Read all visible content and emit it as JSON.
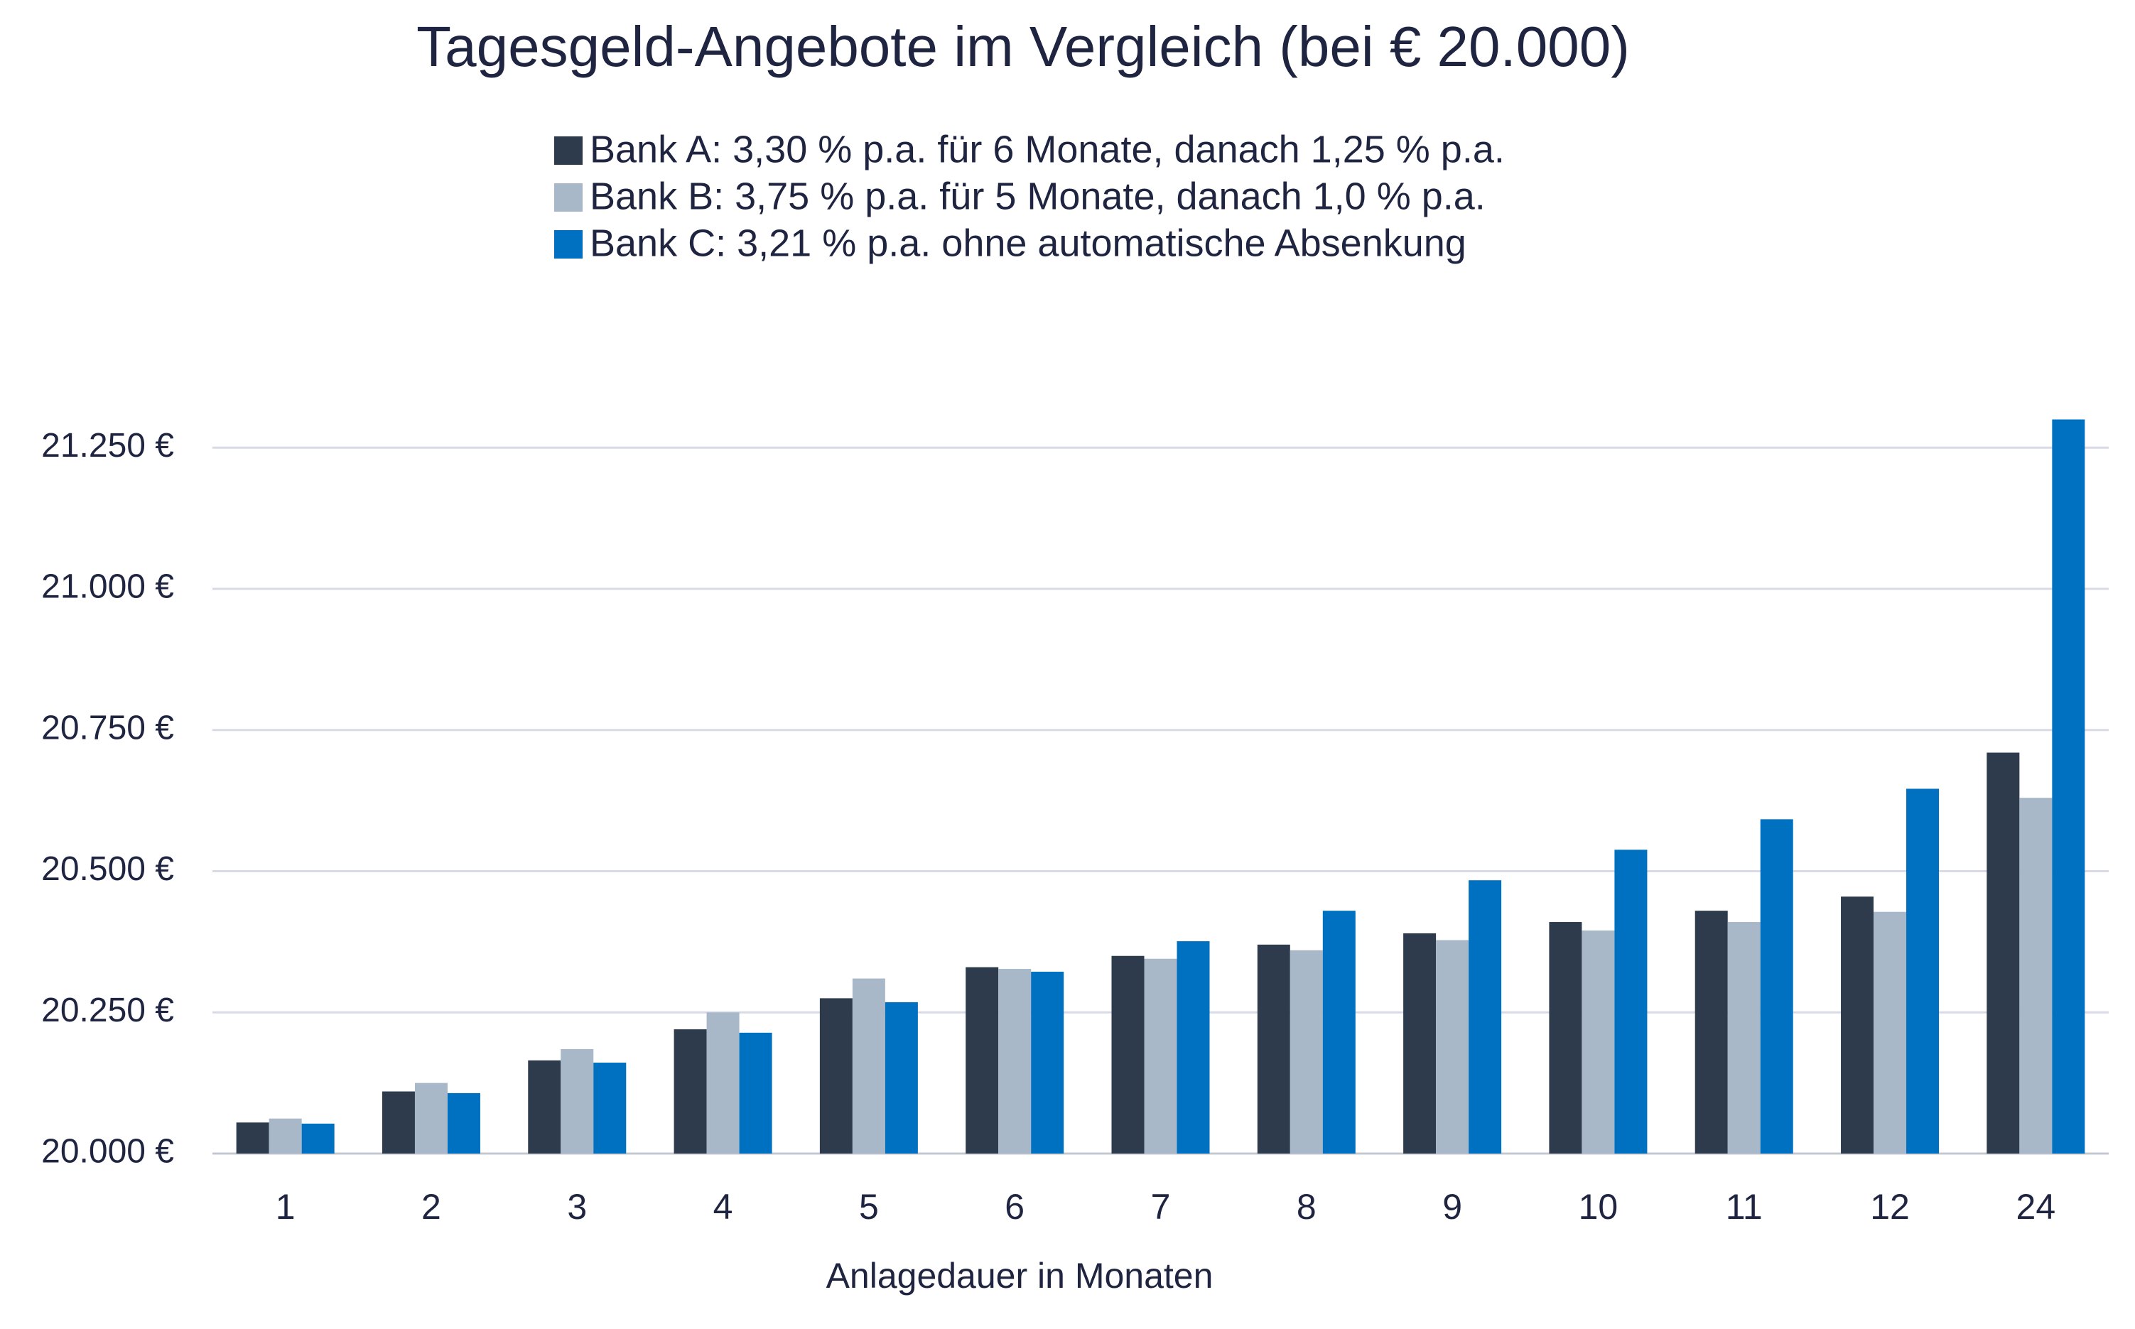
{
  "chart_data": {
    "type": "bar",
    "title": "Tagesgeld-Angebote im Vergleich (bei € 20.000)",
    "x_label": "Anlagedauer in Monaten",
    "categories": [
      "1",
      "2",
      "3",
      "4",
      "5",
      "6",
      "7",
      "8",
      "9",
      "10",
      "11",
      "12",
      "24"
    ],
    "series": [
      {
        "name": "Bank A: 3,30 % p.a. für 6 Monate, danach 1,25 % p.a.",
        "color": "#2d3b4d",
        "values": [
          20055,
          20110,
          20165,
          20220,
          20275,
          20330,
          20350,
          20370,
          20390,
          20410,
          20430,
          20455,
          20710
        ]
      },
      {
        "name": "Bank B: 3,75 % p.a. für 5 Monate, danach 1,0 % p.a.",
        "color": "#a9b8c9",
        "values": [
          20062,
          20125,
          20185,
          20250,
          20310,
          20327,
          20345,
          20360,
          20378,
          20395,
          20410,
          20428,
          20630
        ]
      },
      {
        "name": "Bank C: 3,21 % p.a. ohne automatische Absenkung",
        "color": "#0070c0",
        "values": [
          20053,
          20107,
          20161,
          20214,
          20268,
          20322,
          20376,
          20430,
          20484,
          20538,
          20592,
          20646,
          21300
        ]
      }
    ],
    "ylim": [
      20000,
      21320
    ],
    "yticks": [
      {
        "value": 20000,
        "label": "20.000 €"
      },
      {
        "value": 20250,
        "label": "20.250 €"
      },
      {
        "value": 20500,
        "label": "20.500 €"
      },
      {
        "value": 20750,
        "label": "20.750 €"
      },
      {
        "value": 21000,
        "label": "21.000 €"
      },
      {
        "value": 21250,
        "label": "21.250 €"
      }
    ],
    "grid": true
  }
}
